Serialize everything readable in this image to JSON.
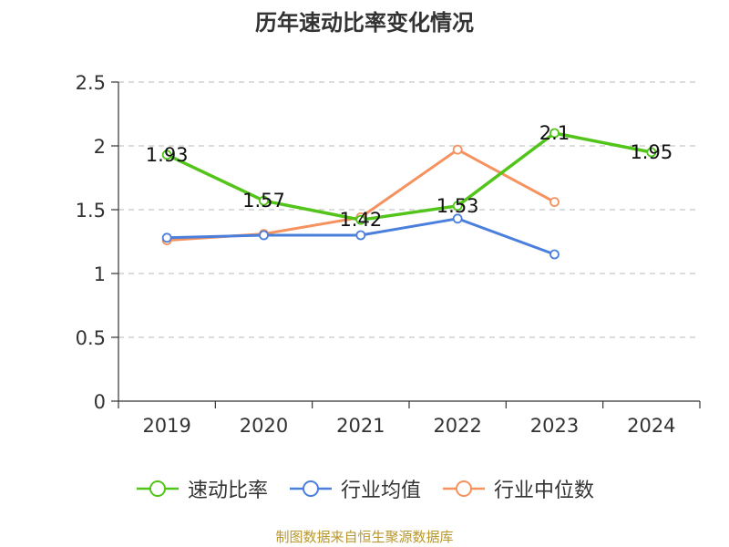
{
  "chart_data": {
    "type": "line",
    "title": "历年速动比率变化情况",
    "categories": [
      "2019",
      "2020",
      "2021",
      "2022",
      "2023",
      "2024"
    ],
    "ylim": [
      0,
      2.5
    ],
    "yticks": [
      "0",
      "0.5",
      "1",
      "1.5",
      "2",
      "2.5"
    ],
    "grid": true,
    "legend": "bottom",
    "series": [
      {
        "name": "速动比率",
        "color": "#52c41a",
        "values": [
          1.93,
          1.57,
          1.42,
          1.53,
          2.1,
          1.95
        ],
        "labels": [
          "1.93",
          "1.57",
          "1.42",
          "1.53",
          "2.1",
          "1.95"
        ]
      },
      {
        "name": "行业均值",
        "color": "#4a7fdb",
        "values": [
          1.28,
          1.3,
          1.3,
          1.43,
          1.15,
          null
        ]
      },
      {
        "name": "行业中位数",
        "color": "#f5925e",
        "values": [
          1.26,
          1.31,
          1.44,
          1.97,
          1.56,
          null
        ]
      }
    ]
  },
  "source": "制图数据来自恒生聚源数据库"
}
